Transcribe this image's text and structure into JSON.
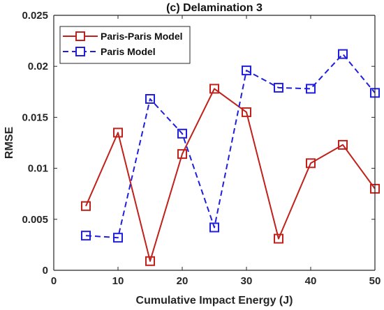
{
  "chart_data": {
    "type": "line",
    "title": "(c) Delamination 3",
    "xlabel": "Cumulative Impact Energy (J)",
    "ylabel": "RMSE",
    "xlim": [
      0,
      50
    ],
    "ylim": [
      0,
      0.025
    ],
    "xticks": [
      0,
      10,
      20,
      30,
      40,
      50
    ],
    "yticks": [
      0,
      0.005,
      0.01,
      0.015,
      0.02,
      0.025
    ],
    "xtick_labels": [
      "0",
      "10",
      "20",
      "30",
      "40",
      "50"
    ],
    "ytick_labels": [
      "0",
      "0.005",
      "0.01",
      "0.015",
      "0.02",
      "0.025"
    ],
    "grid": false,
    "legend_position": "top-left",
    "x": [
      5,
      10,
      15,
      20,
      25,
      30,
      35,
      40,
      45,
      50
    ],
    "series": [
      {
        "name": "Paris-Paris Model",
        "color": "#c0211a",
        "line_style": "solid",
        "marker": "square",
        "values": [
          0.0063,
          0.0135,
          0.0009,
          0.0114,
          0.0178,
          0.0155,
          0.0031,
          0.0105,
          0.0123,
          0.008
        ]
      },
      {
        "name": "Paris Model",
        "color": "#1f1fdc",
        "line_style": "dashed",
        "marker": "square",
        "values": [
          0.0034,
          0.0032,
          0.0168,
          0.0134,
          0.0042,
          0.0196,
          0.0179,
          0.0178,
          0.0212,
          0.0174
        ]
      }
    ]
  }
}
